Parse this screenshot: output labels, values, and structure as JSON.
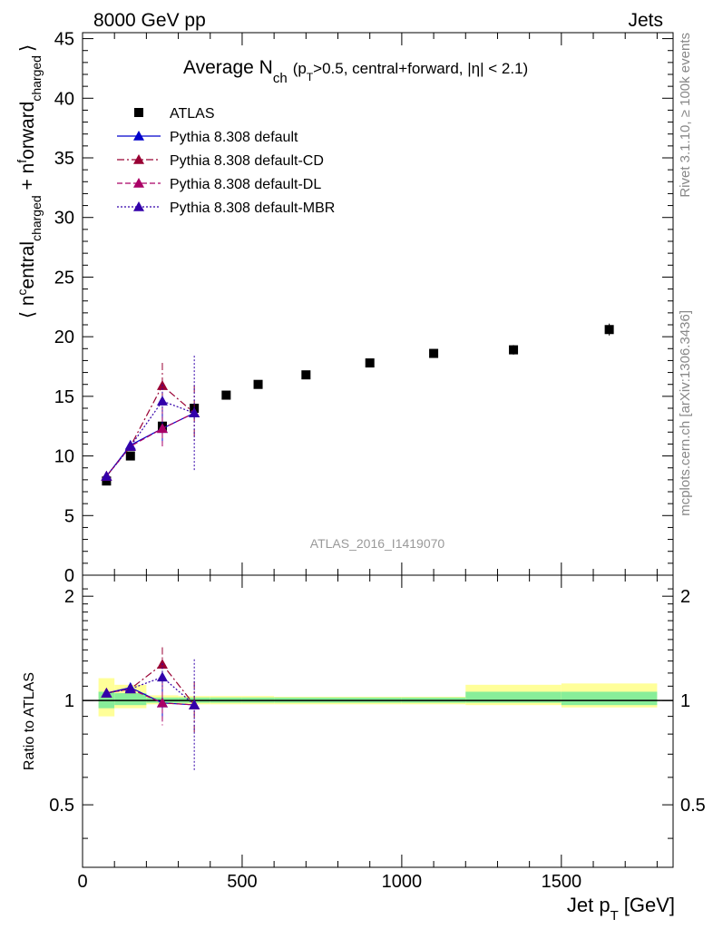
{
  "header": {
    "left": "8000 GeV pp",
    "right": "Jets"
  },
  "side_labels": {
    "rivet": "Rivet 3.1.10, ≥ 100k events",
    "mcplots": "mcplots.cern.ch [arXiv:1306.3436]"
  },
  "chart_data": {
    "type": "scatter",
    "title": {
      "main": "Average N",
      "main_sub": "ch",
      "cond_open": "(p",
      "cond_sub": "T",
      "cond_rest": ">0.5, central+forward, |η| < 2.1)"
    },
    "watermark": "ATLAS_2016_I1419070",
    "xlabel": {
      "main": "Jet p",
      "sub": "T",
      "rest": "[GeV]"
    },
    "ylabel": {
      "open": "⟨ n",
      "sup1": "c",
      "mid1": "entral",
      "sub1": "charged",
      "mid2": " + n",
      "sup2": "f",
      "mid3": "orward",
      "sub2": "charged",
      "close": "⟩"
    },
    "ratio_ylabel": "Ratio to ATLAS",
    "xlim": [
      0,
      1850
    ],
    "ylim": [
      0,
      45.5
    ],
    "ratio_ylim": [
      0.33,
      2.3
    ],
    "x_ticks": [
      0,
      500,
      1000,
      1500
    ],
    "x_tick_labels": [
      "0",
      "500",
      "1000",
      "1500"
    ],
    "y_ticks": [
      0,
      5,
      10,
      15,
      20,
      25,
      30,
      35,
      40,
      45
    ],
    "y_tick_labels": [
      "0",
      "5",
      "10",
      "15",
      "20",
      "25",
      "30",
      "35",
      "40",
      "45"
    ],
    "ratio_ticks": [
      0.5,
      1,
      2
    ],
    "ratio_tick_labels": [
      "0.5",
      "1",
      "2"
    ],
    "legend_placement": "top-left",
    "data": {
      "name": "ATLAS",
      "color": "#000000",
      "points": [
        {
          "x": 75,
          "xlo": 50,
          "xhi": 100,
          "y": 7.9,
          "unc": 0.25
        },
        {
          "x": 150,
          "xlo": 100,
          "xhi": 200,
          "y": 10.0,
          "unc": 0.3
        },
        {
          "x": 250,
          "xlo": 200,
          "xhi": 300,
          "y": 12.5,
          "unc": 0.3
        },
        {
          "x": 350,
          "xlo": 300,
          "xhi": 400,
          "y": 14.0,
          "unc": 0.3
        },
        {
          "x": 450,
          "xlo": 400,
          "xhi": 500,
          "y": 15.1,
          "unc": 0.3
        },
        {
          "x": 550,
          "xlo": 500,
          "xhi": 600,
          "y": 16.0,
          "unc": 0.3
        },
        {
          "x": 700,
          "xlo": 600,
          "xhi": 800,
          "y": 16.8,
          "unc": 0.3
        },
        {
          "x": 900,
          "xlo": 800,
          "xhi": 1000,
          "y": 17.8,
          "unc": 0.3
        },
        {
          "x": 1100,
          "xlo": 1000,
          "xhi": 1200,
          "y": 18.6,
          "unc": 0.35
        },
        {
          "x": 1350,
          "xlo": 1200,
          "xhi": 1500,
          "y": 18.9,
          "unc": 0.4
        },
        {
          "x": 1650,
          "xlo": 1500,
          "xhi": 1800,
          "y": 20.6,
          "unc": 0.5
        }
      ]
    },
    "bands": [
      {
        "xlo": 50,
        "xhi": 100,
        "inner": [
          0.95,
          1.06
        ],
        "outer": [
          0.9,
          1.16
        ]
      },
      {
        "xlo": 100,
        "xhi": 200,
        "inner": [
          0.97,
          1.05
        ],
        "outer": [
          0.95,
          1.11
        ]
      },
      {
        "xlo": 200,
        "xhi": 300,
        "inner": [
          0.985,
          1.02
        ],
        "outer": [
          0.975,
          1.035
        ]
      },
      {
        "xlo": 300,
        "xhi": 400,
        "inner": [
          0.985,
          1.02
        ],
        "outer": [
          0.975,
          1.03
        ]
      },
      {
        "xlo": 400,
        "xhi": 500,
        "inner": [
          0.985,
          1.02
        ],
        "outer": [
          0.975,
          1.03
        ]
      },
      {
        "xlo": 500,
        "xhi": 600,
        "inner": [
          0.985,
          1.02
        ],
        "outer": [
          0.975,
          1.03
        ]
      },
      {
        "xlo": 600,
        "xhi": 800,
        "inner": [
          0.985,
          1.02
        ],
        "outer": [
          0.975,
          1.025
        ]
      },
      {
        "xlo": 800,
        "xhi": 1000,
        "inner": [
          0.985,
          1.02
        ],
        "outer": [
          0.975,
          1.025
        ]
      },
      {
        "xlo": 1000,
        "xhi": 1200,
        "inner": [
          0.985,
          1.02
        ],
        "outer": [
          0.975,
          1.025
        ]
      },
      {
        "xlo": 1200,
        "xhi": 1500,
        "inner": [
          0.985,
          1.06
        ],
        "outer": [
          0.97,
          1.11
        ]
      },
      {
        "xlo": 1500,
        "xhi": 1800,
        "inner": [
          0.97,
          1.06
        ],
        "outer": [
          0.955,
          1.12
        ]
      }
    ],
    "series": [
      {
        "name": "Pythia 8.308 default",
        "color": "#0000cc",
        "dash": "none",
        "points": [
          {
            "x": 75,
            "y": 8.3,
            "err": 0.1
          },
          {
            "x": 150,
            "y": 10.9,
            "err": 0.2
          },
          {
            "x": 250,
            "y": 12.3,
            "err": 1.2
          },
          {
            "x": 350,
            "y": 13.6,
            "err": 0.3
          }
        ]
      },
      {
        "name": "Pythia 8.308 default-CD",
        "color": "#990033",
        "dash": "8,3,2,3",
        "points": [
          {
            "x": 75,
            "y": 8.3,
            "err": 0.1
          },
          {
            "x": 150,
            "y": 10.8,
            "err": 0.2
          },
          {
            "x": 250,
            "y": 15.9,
            "err": 1.9
          },
          {
            "x": 350,
            "y": 13.6,
            "err": 2.3
          }
        ]
      },
      {
        "name": "Pythia 8.308 default-DL",
        "color": "#aa0066",
        "dash": "6,3",
        "points": [
          {
            "x": 75,
            "y": 8.3,
            "err": 0.1
          },
          {
            "x": 150,
            "y": 10.8,
            "err": 0.2
          },
          {
            "x": 250,
            "y": 12.3,
            "err": 1.7
          },
          {
            "x": 350,
            "y": 13.6,
            "err": 0.4
          }
        ]
      },
      {
        "name": "Pythia 8.308 default-MBR",
        "color": "#3300aa",
        "dash": "2,2",
        "points": [
          {
            "x": 75,
            "y": 8.3,
            "err": 0.1
          },
          {
            "x": 150,
            "y": 10.8,
            "err": 0.2
          },
          {
            "x": 250,
            "y": 14.6,
            "err": 1.4
          },
          {
            "x": 350,
            "y": 13.6,
            "err": 4.8
          }
        ]
      }
    ]
  }
}
